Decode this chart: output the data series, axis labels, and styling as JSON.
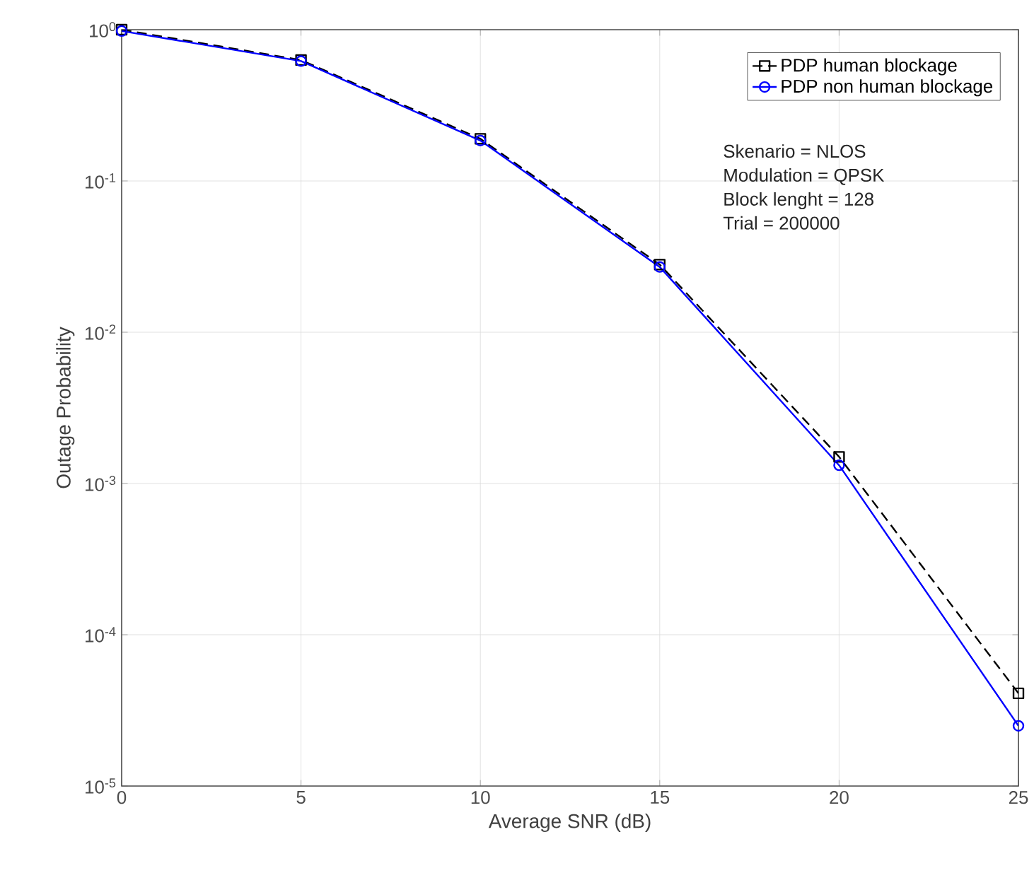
{
  "chart_data": {
    "type": "line",
    "xlabel": "Average SNR (dB)",
    "ylabel": "Outage Probability",
    "x": [
      0,
      5,
      10,
      15,
      20,
      25
    ],
    "series": [
      {
        "name": "PDP human blockage",
        "color": "#000000",
        "marker": "square",
        "line_style": "dashed",
        "values": [
          1.0,
          0.63,
          0.19,
          0.028,
          0.0015,
          4.1e-05
        ]
      },
      {
        "name": "PDP non human blockage",
        "color": "#0000ff",
        "marker": "circle",
        "line_style": "solid",
        "values": [
          0.98,
          0.62,
          0.185,
          0.027,
          0.00132,
          2.5e-05
        ]
      }
    ],
    "log": "y",
    "xlim": [
      0,
      25
    ],
    "ylim": [
      1e-05,
      1
    ],
    "xticks": [
      0,
      5,
      10,
      15,
      20,
      25
    ],
    "yticks": [
      {
        "value": 1e-05,
        "label": "10$^{-5}$"
      },
      {
        "value": 0.0001,
        "label": "10$^{-4}$"
      },
      {
        "value": 0.001,
        "label": "10$^{-3}$"
      },
      {
        "value": 0.01,
        "label": "10$^{-2}$"
      },
      {
        "value": 0.1,
        "label": "10$^{-1}$"
      },
      {
        "value": 1,
        "label": "10$^{0}$"
      }
    ],
    "grid": true,
    "legend": "top right",
    "annotations": [
      "Skenario = NLOS",
      "Modulation = QPSK",
      "Block lenght = 128",
      "Trial = 200000"
    ]
  }
}
